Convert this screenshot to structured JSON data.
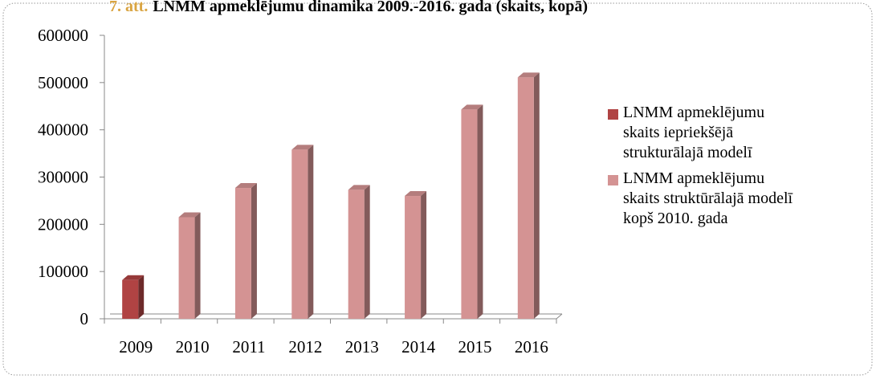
{
  "chart_data": {
    "type": "bar3d",
    "figure_label": "7. att.",
    "title": "LNMM apmeklējumu dinamika 2009.-2016. gada (skaits, kopā)",
    "categories": [
      "2009",
      "2010",
      "2011",
      "2012",
      "2013",
      "2014",
      "2015",
      "2016"
    ],
    "series": [
      {
        "name": "LNMM apmeklējumu skaits iepriekšējā strukturālajā modelī",
        "color": "#b04343",
        "values": [
          82000,
          null,
          null,
          null,
          null,
          null,
          null,
          null
        ]
      },
      {
        "name": "LNMM apmeklējumu skaits struktūrālajā modelī kopš 2010. gada",
        "color": "#d49393",
        "values": [
          null,
          215000,
          277000,
          358000,
          273000,
          260000,
          443000,
          511000
        ]
      }
    ],
    "ylim": [
      0,
      600000
    ],
    "yticks": [
      0,
      100000,
      200000,
      300000,
      400000,
      500000,
      600000
    ],
    "legend": "right"
  }
}
